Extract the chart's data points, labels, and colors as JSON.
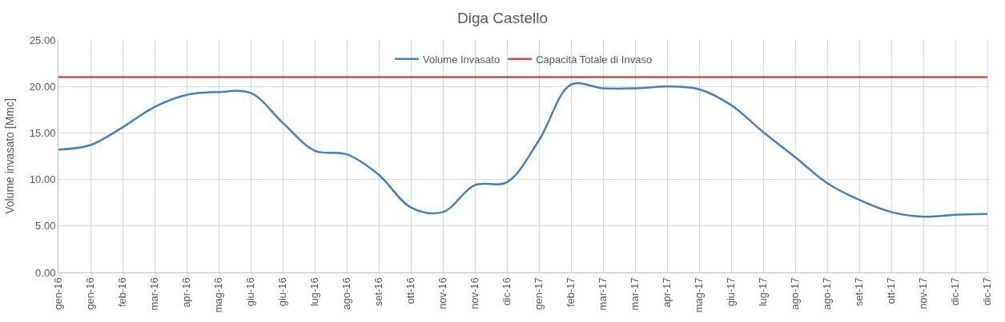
{
  "chart_data": {
    "type": "line",
    "title": "Diga Castello",
    "ylabel": "Volume invasato [Mmc]",
    "categories": [
      "gen-16",
      "gen-16",
      "feb-16",
      "mar-16",
      "apr-16",
      "mag-16",
      "giu-16",
      "giu-16",
      "lug-16",
      "ago-16",
      "set-16",
      "ott-16",
      "nov-16",
      "nov-16",
      "dic-16",
      "gen-17",
      "feb-17",
      "mar-17",
      "mar-17",
      "apr-17",
      "mag-17",
      "giu-17",
      "lug-17",
      "ago-17",
      "ago-17",
      "set-17",
      "ott-17",
      "nov-17",
      "dic-17",
      "dic-17"
    ],
    "series": [
      {
        "name": "Volume Invasato",
        "color": "#4a7ebb",
        "values": [
          13.2,
          13.7,
          15.6,
          17.8,
          19.1,
          19.4,
          19.3,
          16.1,
          13.1,
          12.7,
          10.5,
          7.0,
          6.5,
          9.4,
          9.7,
          14.2,
          20.2,
          19.8,
          19.8,
          20.0,
          19.7,
          18.0,
          15.1,
          12.4,
          9.6,
          7.8,
          6.5,
          6.0,
          6.2,
          6.3
        ]
      },
      {
        "name": "Capacità Totale di Invaso",
        "color": "#c0504d",
        "values": [
          21.0,
          21.0,
          21.0,
          21.0,
          21.0,
          21.0,
          21.0,
          21.0,
          21.0,
          21.0,
          21.0,
          21.0,
          21.0,
          21.0,
          21.0,
          21.0,
          21.0,
          21.0,
          21.0,
          21.0,
          21.0,
          21.0,
          21.0,
          21.0,
          21.0,
          21.0,
          21.0,
          21.0,
          21.0,
          21.0
        ]
      }
    ],
    "ylim": [
      0,
      25
    ],
    "yticks": [
      {
        "value": 0,
        "label": "0.00"
      },
      {
        "value": 5,
        "label": "5.00"
      },
      {
        "value": 10,
        "label": "10.00"
      },
      {
        "value": 15,
        "label": "15.00"
      },
      {
        "value": 20,
        "label": "20.00"
      },
      {
        "value": 25,
        "label": "25.00"
      }
    ],
    "grid": true,
    "legend": "top",
    "marker": "none",
    "line_style": "solid"
  }
}
